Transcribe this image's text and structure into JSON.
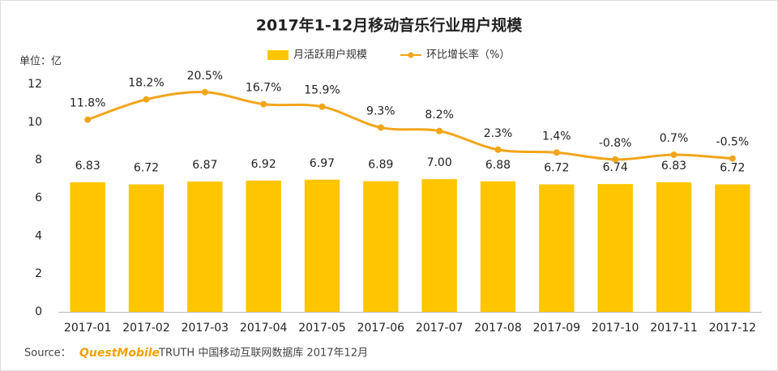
{
  "chart_data": {
    "type": "bar-line",
    "title": "2017年1-12月移动音乐行业用户规模",
    "y_label": "单位：亿",
    "categories": [
      "2017-01",
      "2017-02",
      "2017-03",
      "2017-04",
      "2017-05",
      "2017-06",
      "2017-07",
      "2017-08",
      "2017-09",
      "2017-10",
      "2017-11",
      "2017-12"
    ],
    "series": [
      {
        "name": "月活跃用户规模",
        "color": "#ffc600",
        "type": "bar",
        "values": [
          6.83,
          6.72,
          6.87,
          6.92,
          6.97,
          6.89,
          7,
          6.88,
          6.72,
          6.74,
          6.83,
          6.72
        ],
        "value_labels": [
          "6.83",
          "6.72",
          "6.87",
          "6.92",
          "6.97",
          "6.89",
          "7.00",
          "6.88",
          "6.72",
          "6.74",
          "6.83",
          "6.72"
        ]
      },
      {
        "name": "环比增长率（%）",
        "color": "#f2a51a",
        "type": "line",
        "axis": "y2",
        "values": [
          11.8,
          18.2,
          20.5,
          16.7,
          15.9,
          9.3,
          8.2,
          2.3,
          1.4,
          -0.8,
          0.7,
          -0.5
        ],
        "value_labels": [
          "11.8%",
          "18.2%",
          "20.5%",
          "16.7%",
          "15.9%",
          "9.3%",
          "8.2%",
          "2.3%",
          "1.4%",
          "-0.8%",
          "0.7%",
          "-0.5%"
        ]
      }
    ],
    "ylim": [
      0,
      12
    ],
    "yticks": [
      0,
      2,
      4,
      6,
      8,
      10,
      12
    ],
    "y2lim": [
      -49,
      23
    ],
    "grid": false,
    "legend": "top",
    "source": {
      "label": "Source：",
      "brand": "QuestMobile",
      "text": "TRUTH 中国移动互联网数据库 2017年12月"
    }
  }
}
